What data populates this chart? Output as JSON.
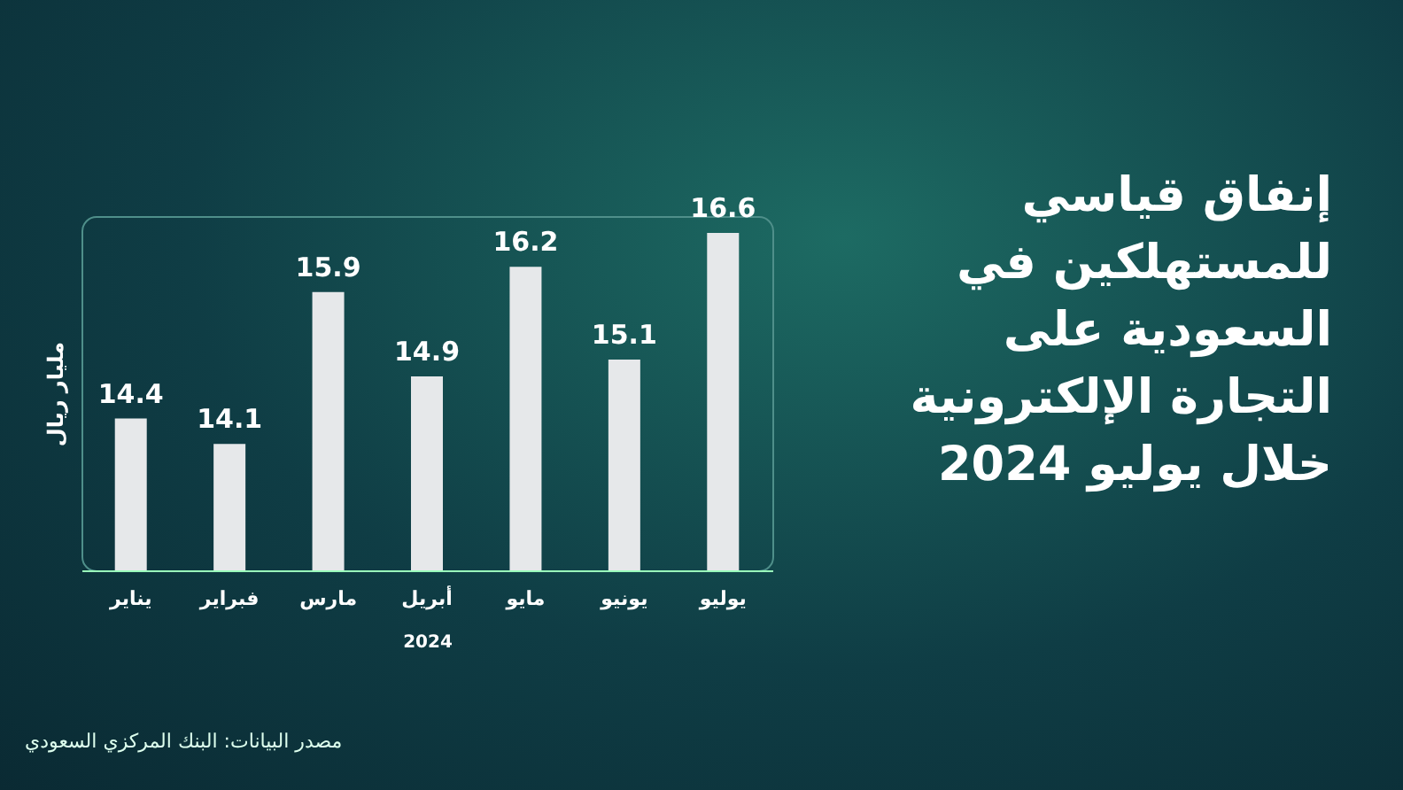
{
  "chart_data": {
    "type": "bar",
    "title": "إنفاق قياسي للمستهلكين في السعودية على التجارة الإلكترونية خلال يوليو 2024",
    "xlabel": "2024",
    "ylabel": "مليار ريال",
    "categories": [
      "يناير",
      "فبراير",
      "مارس",
      "أبريل",
      "مايو",
      "يونيو",
      "يوليو"
    ],
    "values": [
      14.4,
      14.1,
      15.9,
      14.9,
      16.2,
      15.1,
      16.6
    ],
    "color": "#e6e8ea",
    "ylim": [
      12.6,
      16.8
    ],
    "data_labels": true,
    "grid": false,
    "annotations": [
      "مصدر البيانات: البنك المركزي السعودي"
    ]
  }
}
